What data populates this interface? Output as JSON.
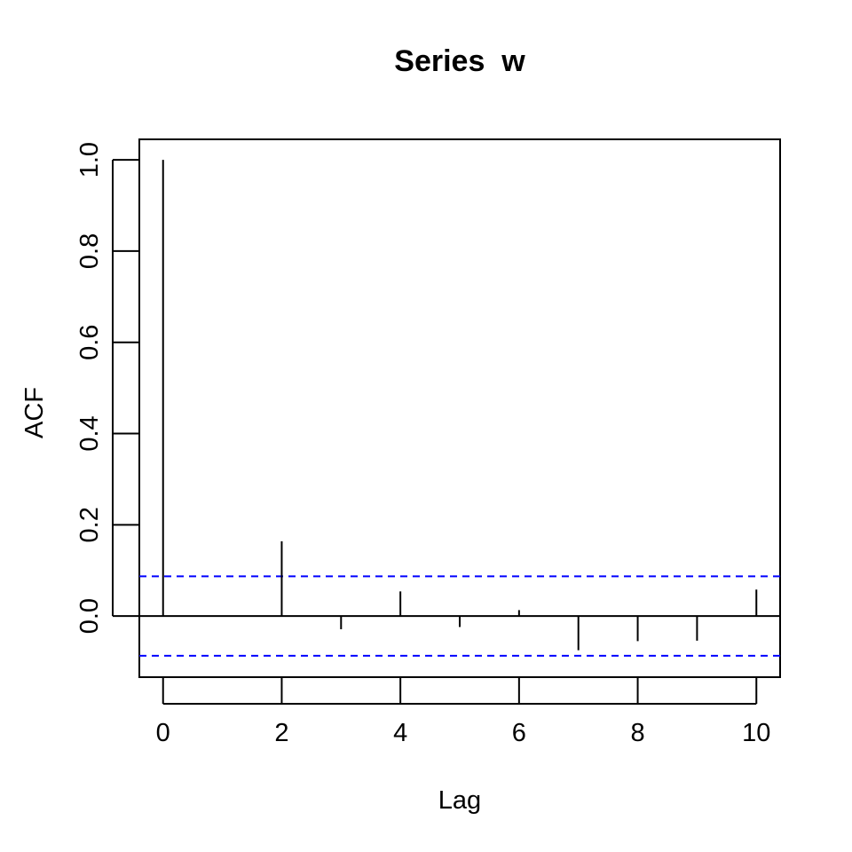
{
  "chart_data": {
    "type": "bar",
    "title": "Series  w",
    "xlabel": "Lag",
    "ylabel": "ACF",
    "xlim": [
      -0.4,
      10.4
    ],
    "ylim": [
      -0.134,
      1.045
    ],
    "x_ticks": [
      0,
      2,
      4,
      6,
      8,
      10
    ],
    "y_ticks": [
      0.0,
      0.2,
      0.4,
      0.6,
      0.8,
      1.0
    ],
    "y_tick_labels": [
      "0.0",
      "0.2",
      "0.4",
      "0.6",
      "0.8",
      "1.0"
    ],
    "series": [
      {
        "x": [
          0,
          1,
          2,
          3,
          4,
          5,
          6,
          7,
          8,
          9,
          10
        ],
        "values": [
          1.0,
          0.0,
          0.164,
          -0.029,
          0.054,
          -0.024,
          0.013,
          -0.075,
          -0.055,
          -0.054,
          0.058
        ]
      }
    ],
    "confidence_band": 0.087,
    "confidence_color": "#0000ff",
    "line_color": "#000000",
    "grid": false,
    "legend": "none"
  }
}
